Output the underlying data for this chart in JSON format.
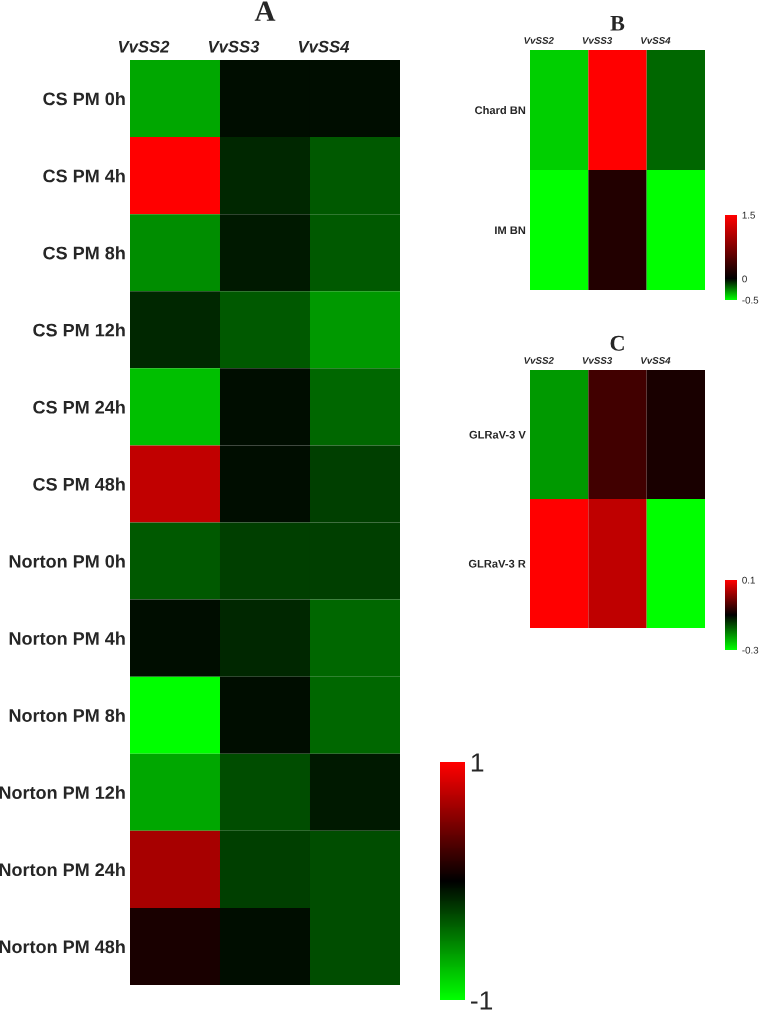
{
  "chart_data": [
    {
      "type": "heatmap",
      "title": "A",
      "categories": [
        "VvSS2",
        "VvSS3",
        "VvSS4"
      ],
      "y_categories": [
        "CS PM 0h",
        "CS PM 4h",
        "CS PM 8h",
        "CS PM 12h",
        "CS PM 24h",
        "CS PM 48h",
        "Norton PM 0h",
        "Norton PM 4h",
        "Norton PM 8h",
        "Norton PM 12h",
        "Norton PM 24h",
        "Norton PM 48h"
      ],
      "cells": [
        [
          -0.65,
          -0.05,
          -0.05
        ],
        [
          1.0,
          -0.15,
          -0.35
        ],
        [
          -0.55,
          -0.1,
          -0.35
        ],
        [
          -0.15,
          -0.35,
          -0.6
        ],
        [
          -0.75,
          -0.05,
          -0.4
        ],
        [
          0.75,
          -0.05,
          -0.25
        ],
        [
          -0.35,
          -0.25,
          -0.25
        ],
        [
          -0.05,
          -0.15,
          -0.4
        ],
        [
          -1.0,
          -0.05,
          -0.4
        ],
        [
          -0.65,
          -0.3,
          -0.1
        ],
        [
          0.65,
          -0.25,
          -0.3
        ],
        [
          0.1,
          -0.05,
          -0.3
        ]
      ],
      "clim": [
        -1,
        1
      ],
      "cticks": [
        -1,
        1
      ]
    },
    {
      "type": "heatmap",
      "title": "B",
      "categories": [
        "VvSS2",
        "VvSS3",
        "VvSS4"
      ],
      "y_categories": [
        "Chard BN",
        "IM BN"
      ],
      "cells": [
        [
          -0.4,
          1.5,
          -0.2
        ],
        [
          -0.5,
          0.2,
          -0.5
        ]
      ],
      "clim": [
        -0.5,
        1.5
      ],
      "cticks": [
        -0.5,
        0,
        1.5
      ]
    },
    {
      "type": "heatmap",
      "title": "C",
      "categories": [
        "VvSS2",
        "VvSS3",
        "VvSS4"
      ],
      "y_categories": [
        "GLRaV-3 V",
        "GLRaV-3 R"
      ],
      "cells": [
        [
          -0.22,
          -0.05,
          -0.08
        ],
        [
          0.1,
          0.05,
          -0.3
        ]
      ],
      "clim": [
        -0.3,
        0.1
      ],
      "cticks": [
        -0.3,
        0.1
      ]
    }
  ]
}
